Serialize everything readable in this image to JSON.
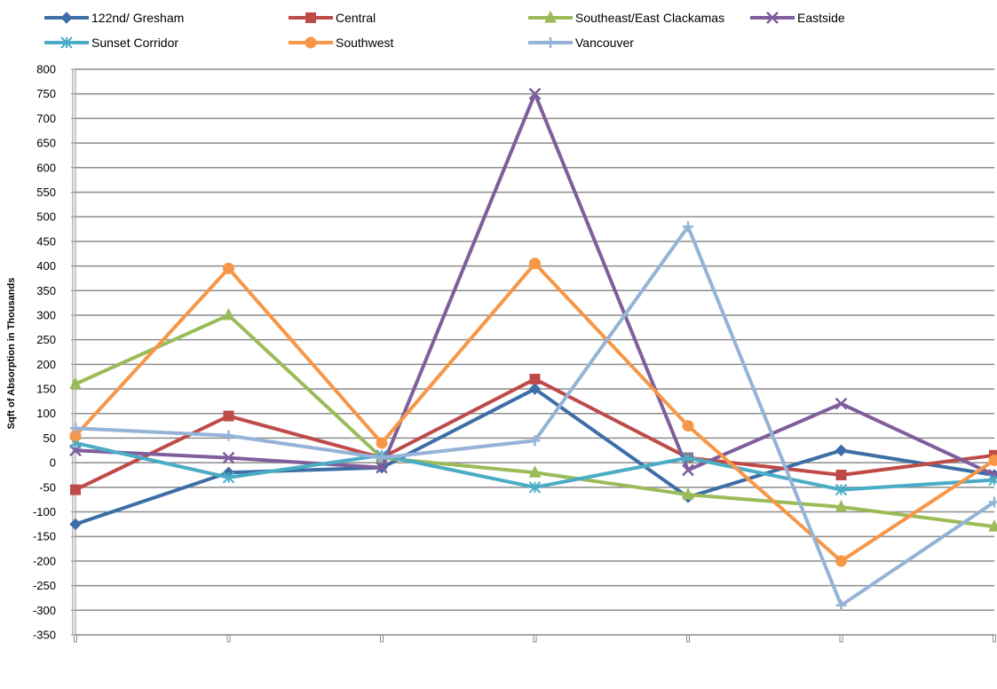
{
  "chart_data": {
    "type": "line",
    "title": "",
    "xlabel": "",
    "ylabel": "Sqft of Absorption in Thousands",
    "ylim": [
      -350,
      800
    ],
    "ytick_step": 50,
    "grid": true,
    "legend_position": "top",
    "categories": [
      "",
      "",
      "",
      "",
      "",
      "",
      ""
    ],
    "series": [
      {
        "name": "122nd/ Gresham",
        "color": "#3d6ea6",
        "marker": "diamond",
        "values": [
          -125,
          -20,
          -10,
          150,
          -70,
          25,
          -25
        ]
      },
      {
        "name": "Central",
        "color": "#bf4b48",
        "marker": "square",
        "values": [
          -55,
          95,
          10,
          170,
          10,
          -25,
          15
        ]
      },
      {
        "name": "Southeast/East Clackamas",
        "color": "#9bbb59",
        "marker": "triangle",
        "values": [
          160,
          300,
          10,
          -20,
          -65,
          -90,
          -130
        ]
      },
      {
        "name": "Eastside",
        "color": "#7f5e9c",
        "marker": "x",
        "values": [
          25,
          10,
          -10,
          750,
          -15,
          120,
          -25
        ]
      },
      {
        "name": "Sunset Corridor",
        "color": "#4aacc5",
        "marker": "star",
        "values": [
          40,
          -30,
          15,
          -50,
          10,
          -55,
          -35
        ]
      },
      {
        "name": "Southwest",
        "color": "#f79646",
        "marker": "circle",
        "values": [
          55,
          395,
          40,
          405,
          75,
          -200,
          5
        ]
      },
      {
        "name": "Vancouver",
        "color": "#95b3d7",
        "marker": "plus",
        "values": [
          70,
          55,
          10,
          45,
          480,
          -290,
          -80
        ]
      }
    ]
  }
}
